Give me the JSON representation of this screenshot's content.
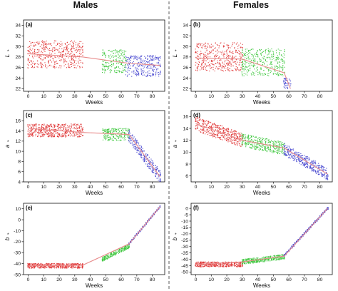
{
  "column_titles": {
    "left": "Males",
    "right": "Females"
  },
  "chart_data": [
    {
      "panel": "(a)",
      "type": "scatter",
      "sex": "Males",
      "variable": "L*",
      "xlabel": "Weeks",
      "ylabel": "L",
      "xlim": [
        -3,
        88
      ],
      "ylim": [
        21.5,
        35
      ],
      "xticks": [
        0,
        10,
        20,
        30,
        40,
        50,
        60,
        70,
        80
      ],
      "yticks": [
        22,
        24,
        26,
        28,
        30,
        32,
        34
      ],
      "clusters": [
        {
          "color": "#e03a3a",
          "x_range": [
            0,
            35
          ],
          "y_mean": 28.5,
          "y_spread": 2.6
        },
        {
          "color": "#3fc73f",
          "x_range": [
            48,
            63
          ],
          "y_mean": 27.2,
          "y_spread": 2.2
        },
        {
          "color": "#4a4ad0",
          "x_range": [
            63,
            85
          ],
          "y_mean": 26.3,
          "y_spread": 2.0
        }
      ],
      "fit_line": [
        [
          0,
          28.6
        ],
        [
          35,
          28.0
        ],
        [
          65,
          26.8
        ],
        [
          85,
          26.4
        ]
      ]
    },
    {
      "panel": "(b)",
      "type": "scatter",
      "sex": "Females",
      "variable": "L*",
      "xlabel": "Weeks",
      "ylabel": "L",
      "xlim": [
        -3,
        88
      ],
      "ylim": [
        21.5,
        35
      ],
      "xticks": [
        0,
        10,
        20,
        30,
        40,
        50,
        60,
        70,
        80
      ],
      "yticks": [
        22,
        24,
        26,
        28,
        30,
        32,
        34
      ],
      "clusters": [
        {
          "color": "#e03a3a",
          "x_range": [
            0,
            30
          ],
          "y_mean": 28.0,
          "y_spread": 2.7
        },
        {
          "color": "#3fc73f",
          "x_range": [
            30,
            57
          ],
          "y_mean": 27.0,
          "y_spread": 2.6
        },
        {
          "color": "#4a4ad0",
          "x_range": [
            57,
            61
          ],
          "y_mean": 23.0,
          "y_spread": 1.0
        }
      ],
      "fit_line": [
        [
          0,
          27.8
        ],
        [
          30,
          27.6
        ],
        [
          57,
          25.0
        ],
        [
          61,
          22.0
        ]
      ]
    },
    {
      "panel": "(c)",
      "type": "scatter",
      "sex": "Males",
      "variable": "a*",
      "xlabel": "Weeks",
      "ylabel": "a",
      "xlim": [
        -3,
        88
      ],
      "ylim": [
        4,
        18
      ],
      "xticks": [
        0,
        10,
        20,
        30,
        40,
        50,
        60,
        70,
        80
      ],
      "yticks": [
        4,
        6,
        8,
        10,
        12,
        14,
        16
      ],
      "clusters": [
        {
          "color": "#e03a3a",
          "x_range": [
            0,
            35
          ],
          "y_mean": 14.1,
          "y_spread": 1.3
        },
        {
          "color": "#3fc73f",
          "x_range": [
            48,
            65
          ],
          "y_mean": 13.3,
          "y_spread": 1.2
        },
        {
          "color": "#4a4ad0",
          "x_range": [
            65,
            85
          ],
          "y_start": 13.0,
          "y_end": 5.0,
          "y_spread": 1.2
        }
      ],
      "fit_line": [
        [
          0,
          14.5
        ],
        [
          35,
          13.7
        ],
        [
          65,
          13.3
        ],
        [
          85,
          5.0
        ]
      ]
    },
    {
      "panel": "(d)",
      "type": "scatter",
      "sex": "Females",
      "variable": "a*",
      "xlabel": "Weeks",
      "ylabel": "a",
      "xlim": [
        -3,
        88
      ],
      "ylim": [
        5,
        17
      ],
      "xticks": [
        0,
        10,
        20,
        30,
        40,
        50,
        60,
        70,
        80
      ],
      "yticks": [
        6,
        8,
        10,
        12,
        14,
        16
      ],
      "clusters": [
        {
          "color": "#e03a3a",
          "x_range": [
            0,
            30
          ],
          "y_start": 14.8,
          "y_end": 12.0,
          "y_spread": 1.2
        },
        {
          "color": "#3fc73f",
          "x_range": [
            30,
            57
          ],
          "y_start": 12.0,
          "y_end": 10.6,
          "y_spread": 1.1
        },
        {
          "color": "#4a4ad0",
          "x_range": [
            57,
            85
          ],
          "y_start": 10.5,
          "y_end": 6.3,
          "y_spread": 1.0
        }
      ],
      "fit_line": [
        [
          0,
          14.8
        ],
        [
          30,
          12.0
        ],
        [
          57,
          10.7
        ],
        [
          85,
          6.3
        ]
      ]
    },
    {
      "panel": "(e)",
      "type": "scatter",
      "sex": "Males",
      "variable": "b*",
      "xlabel": "Weeks",
      "ylabel": "b",
      "xlim": [
        -3,
        88
      ],
      "ylim": [
        -50,
        15
      ],
      "xticks": [
        0,
        10,
        20,
        30,
        40,
        50,
        60,
        70,
        80
      ],
      "yticks": [
        -50,
        -40,
        -30,
        -20,
        -10,
        0,
        10
      ],
      "clusters": [
        {
          "color": "#e03a3a",
          "x_range": [
            0,
            35
          ],
          "y_mean": -42.0,
          "y_spread": 2.2
        },
        {
          "color": "#3fc73f",
          "x_range": [
            48,
            65
          ],
          "y_start": -36.0,
          "y_end": -24.0,
          "y_spread": 2.0
        },
        {
          "color": "#4a4ad0",
          "x_range": [
            65,
            85
          ],
          "y_start": -22.0,
          "y_end": 12.0,
          "y_spread": 0.8
        }
      ],
      "fit_line": [
        [
          0,
          -42.0
        ],
        [
          35,
          -41.5
        ],
        [
          65,
          -22.0
        ],
        [
          85,
          12.0
        ]
      ]
    },
    {
      "panel": "(f)",
      "type": "scatter",
      "sex": "Females",
      "variable": "b*",
      "xlabel": "Weeks",
      "ylabel": "b",
      "xlim": [
        -3,
        88
      ],
      "ylim": [
        -52,
        4
      ],
      "xticks": [
        0,
        10,
        20,
        30,
        40,
        50,
        60,
        70,
        80
      ],
      "yticks": [
        -50,
        -45,
        -40,
        -35,
        -30,
        -25,
        -20,
        -15,
        -10,
        -5,
        0
      ],
      "clusters": [
        {
          "color": "#e03a3a",
          "x_range": [
            0,
            30
          ],
          "y_mean": -44.0,
          "y_spread": 2.0
        },
        {
          "color": "#3fc73f",
          "x_range": [
            30,
            57
          ],
          "y_start": -42.0,
          "y_end": -38.0,
          "y_spread": 2.0
        },
        {
          "color": "#4a4ad0",
          "x_range": [
            57,
            85
          ],
          "y_start": -37.0,
          "y_end": 0.0,
          "y_spread": 0.8
        }
      ],
      "fit_line": [
        [
          0,
          -44.0
        ],
        [
          30,
          -42.0
        ],
        [
          57,
          -37.5
        ],
        [
          85,
          0.0
        ]
      ]
    }
  ],
  "colors": {
    "fit_line": "#e88a8a",
    "axis": "#111111",
    "divider": "#333333"
  }
}
